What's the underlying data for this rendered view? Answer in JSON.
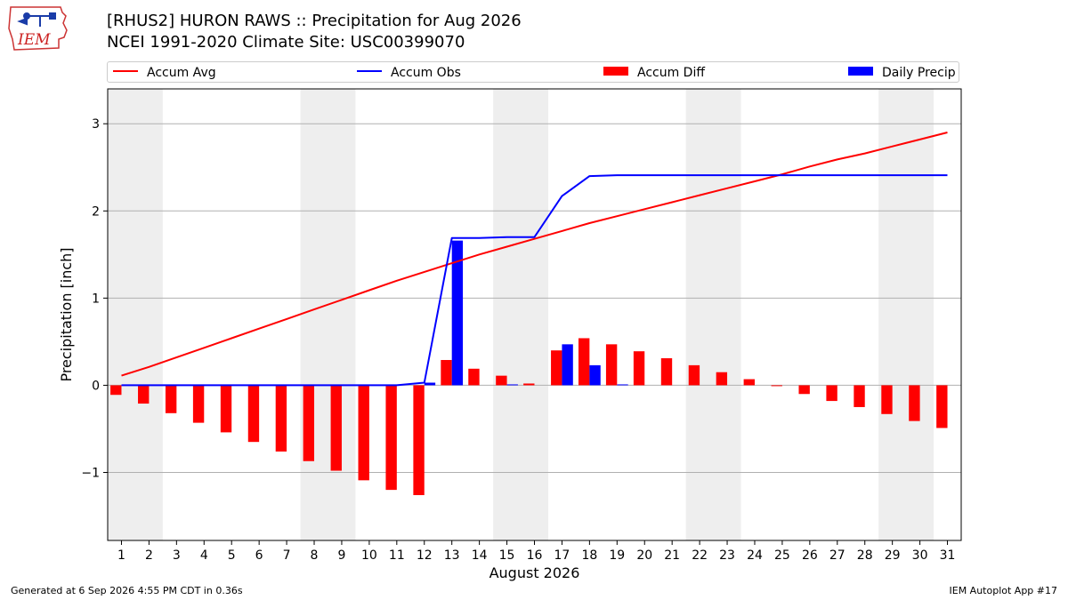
{
  "header": {
    "title_line1": "[RHUS2] HURON RAWS :: Precipitation for Aug 2026",
    "title_line2": "NCEI 1991-2020 Climate Site: USC00399070"
  },
  "logo": {
    "text": "IEM",
    "icon": "iem-iowa-logo"
  },
  "legend": {
    "accum_avg": "Accum Avg",
    "accum_obs": "Accum Obs",
    "accum_diff": "Accum Diff",
    "daily_precip": "Daily Precip"
  },
  "colors": {
    "accum_avg": "#ff0000",
    "accum_obs": "#0000ff",
    "accum_diff": "#ff0000",
    "daily_precip": "#0000ff",
    "weekend_shade": "#eeeeee",
    "grid": "#b0b0b0"
  },
  "chart_data": {
    "type": "bar",
    "xlabel": "August 2026",
    "ylabel": "Precipitation [inch]",
    "ylim": [
      -1.78,
      3.4
    ],
    "yticks": [
      -1,
      0,
      1,
      2,
      3
    ],
    "ytick_labels": [
      "−1",
      "0",
      "1",
      "2",
      "3"
    ],
    "grid": "horizontal",
    "legend_position": "top",
    "days": [
      1,
      2,
      3,
      4,
      5,
      6,
      7,
      8,
      9,
      10,
      11,
      12,
      13,
      14,
      15,
      16,
      17,
      18,
      19,
      20,
      21,
      22,
      23,
      24,
      25,
      26,
      27,
      28,
      29,
      30,
      31
    ],
    "shaded_weekend_days": [
      [
        1,
        2
      ],
      [
        8,
        9
      ],
      [
        15,
        16
      ],
      [
        22,
        23
      ],
      [
        29,
        30
      ]
    ],
    "series": [
      {
        "name": "Accum Avg",
        "kind": "line",
        "values": [
          0.11,
          0.21,
          0.32,
          0.43,
          0.54,
          0.65,
          0.76,
          0.87,
          0.98,
          1.09,
          1.2,
          1.3,
          1.4,
          1.5,
          1.59,
          1.68,
          1.77,
          1.86,
          1.94,
          2.02,
          2.1,
          2.18,
          2.26,
          2.34,
          2.42,
          2.51,
          2.59,
          2.66,
          2.74,
          2.82,
          2.9
        ]
      },
      {
        "name": "Accum Obs",
        "kind": "line",
        "values": [
          0.0,
          0.0,
          0.0,
          0.0,
          0.0,
          0.0,
          0.0,
          0.0,
          0.0,
          0.0,
          0.0,
          0.03,
          1.69,
          1.69,
          1.7,
          1.7,
          2.17,
          2.4,
          2.41,
          2.41,
          2.41,
          2.41,
          2.41,
          2.41,
          2.41,
          2.41,
          2.41,
          2.41,
          2.41,
          2.41,
          2.41
        ]
      },
      {
        "name": "Accum Diff",
        "kind": "bar",
        "values": [
          -0.11,
          -0.21,
          -0.32,
          -0.43,
          -0.54,
          -0.65,
          -0.76,
          -0.87,
          -0.98,
          -1.09,
          -1.2,
          -1.26,
          0.29,
          0.19,
          0.11,
          0.02,
          0.4,
          0.54,
          0.47,
          0.39,
          0.31,
          0.23,
          0.15,
          0.07,
          -0.01,
          -0.1,
          -0.18,
          -0.25,
          -0.33,
          -0.41,
          -0.49
        ]
      },
      {
        "name": "Daily Precip",
        "kind": "bar",
        "values": [
          0,
          0,
          0,
          0,
          0,
          0,
          0,
          0,
          0,
          0,
          0,
          0.03,
          1.66,
          0,
          0.01,
          0,
          0.47,
          0.23,
          0.01,
          0,
          0,
          0,
          0,
          0,
          0,
          0,
          0,
          0,
          0,
          0,
          0
        ]
      }
    ]
  },
  "footer": {
    "generated": "Generated at 6 Sep 2026 4:55 PM CDT in 0.36s",
    "app": "IEM Autoplot App #17"
  }
}
